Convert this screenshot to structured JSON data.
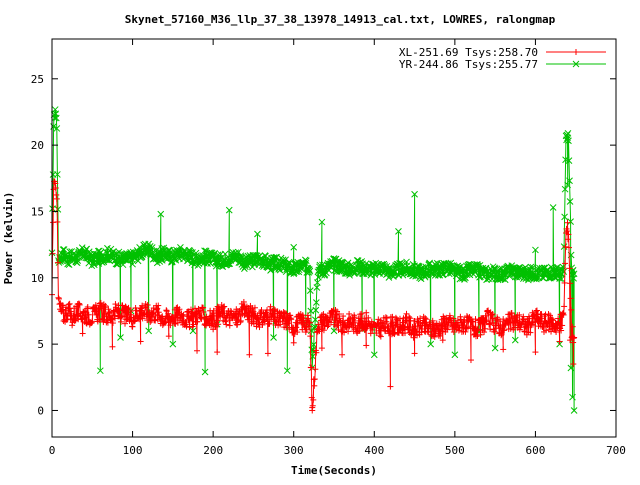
{
  "chart_data": {
    "type": "line",
    "title": "Skynet_57160_M36_llp_37_38_13978_14913_cal.txt, LOWRES, ralongmap",
    "xlabel": "Time(Seconds)",
    "ylabel": "Power (kelvin)",
    "xlim": [
      0,
      700
    ],
    "ylim": [
      -2,
      28
    ],
    "xticks": [
      0,
      100,
      200,
      300,
      400,
      500,
      600,
      700
    ],
    "yticks": [
      0,
      5,
      10,
      15,
      20,
      25
    ],
    "grid": false,
    "legend_position": "top-right",
    "series": [
      {
        "name": "XL-251.69 Tsys:258.70",
        "color": "#ff0000",
        "marker": "plus",
        "x": [
          0,
          2,
          4,
          6,
          8,
          10,
          15,
          20,
          25,
          30,
          40,
          50,
          60,
          70,
          80,
          90,
          100,
          110,
          120,
          130,
          140,
          150,
          160,
          170,
          180,
          190,
          200,
          210,
          220,
          230,
          240,
          250,
          260,
          270,
          280,
          290,
          300,
          310,
          320,
          323,
          330,
          340,
          350,
          360,
          370,
          380,
          390,
          400,
          410,
          420,
          430,
          440,
          450,
          460,
          470,
          480,
          490,
          500,
          510,
          520,
          530,
          540,
          550,
          560,
          570,
          580,
          590,
          600,
          610,
          620,
          630,
          635,
          638,
          641,
          645,
          648
        ],
        "y": [
          8.5,
          16.5,
          17.5,
          16.2,
          8.4,
          7.6,
          7.2,
          7.6,
          7.0,
          7.4,
          7.3,
          7.1,
          7.5,
          7.1,
          7.4,
          7.2,
          7.0,
          7.6,
          7.3,
          7.4,
          6.9,
          7.1,
          7.2,
          6.8,
          7.3,
          7.0,
          6.8,
          7.4,
          7.0,
          7.0,
          7.6,
          7.1,
          6.9,
          7.2,
          6.8,
          6.9,
          6.4,
          6.7,
          6.5,
          0.0,
          6.6,
          6.8,
          7.0,
          6.4,
          6.7,
          6.5,
          6.8,
          6.1,
          6.3,
          6.5,
          6.2,
          6.6,
          6.1,
          6.4,
          6.1,
          6.2,
          6.7,
          6.3,
          6.6,
          6.3,
          6.1,
          6.9,
          6.5,
          6.3,
          6.7,
          6.7,
          6.3,
          7.0,
          6.6,
          6.6,
          6.4,
          7.0,
          13.5,
          13.6,
          6.0,
          5.5
        ]
      },
      {
        "name": "YR-244.86 Tsys:255.77",
        "color": "#00c000",
        "marker": "cross",
        "x": [
          0,
          2,
          4,
          6,
          8,
          10,
          15,
          20,
          25,
          30,
          40,
          50,
          60,
          70,
          80,
          90,
          100,
          110,
          120,
          130,
          140,
          150,
          160,
          170,
          180,
          190,
          200,
          210,
          220,
          230,
          240,
          250,
          260,
          270,
          280,
          290,
          300,
          310,
          320,
          323,
          330,
          340,
          350,
          360,
          370,
          380,
          390,
          400,
          410,
          420,
          430,
          440,
          450,
          460,
          470,
          480,
          490,
          500,
          510,
          520,
          530,
          540,
          550,
          560,
          570,
          580,
          590,
          600,
          610,
          620,
          630,
          635,
          638,
          641,
          645,
          648
        ],
        "y": [
          11.5,
          21.5,
          22.8,
          21.5,
          11.4,
          11.6,
          11.8,
          11.4,
          11.6,
          11.5,
          11.9,
          11.3,
          11.6,
          11.8,
          11.5,
          11.4,
          11.5,
          11.9,
          12.2,
          11.6,
          11.8,
          11.6,
          11.9,
          11.7,
          11.4,
          11.6,
          11.4,
          11.3,
          11.5,
          11.7,
          11.1,
          11.3,
          11.4,
          11.0,
          11.1,
          10.9,
          10.6,
          10.9,
          10.8,
          3.5,
          10.5,
          10.7,
          11.0,
          10.9,
          10.6,
          10.9,
          10.7,
          10.6,
          10.8,
          10.4,
          10.6,
          10.7,
          10.5,
          10.4,
          10.7,
          10.6,
          10.8,
          10.5,
          10.3,
          10.6,
          10.5,
          10.3,
          10.4,
          10.2,
          10.6,
          10.4,
          10.3,
          10.4,
          10.3,
          10.5,
          10.3,
          10.4,
          20.5,
          20.6,
          10.5,
          10.3
        ]
      }
    ],
    "spikes": [
      {
        "series": 0,
        "x": [
          38,
          75,
          110,
          145,
          180,
          205,
          245,
          268,
          300,
          323,
          335,
          360,
          390,
          420,
          450,
          485,
          520,
          560,
          600,
          630,
          643,
          647
        ],
        "y": [
          5.8,
          4.8,
          5.2,
          5.6,
          4.5,
          4.4,
          4.2,
          4.3,
          5.1,
          0.0,
          4.7,
          4.2,
          4.9,
          1.8,
          4.3,
          5.3,
          3.8,
          4.6,
          4.4,
          5.2,
          5.3,
          3.5
        ]
      },
      {
        "series": 1,
        "x": [
          60,
          85,
          98,
          120,
          135,
          150,
          175,
          190,
          205,
          220,
          255,
          275,
          292,
          300,
          315,
          335,
          350,
          385,
          400,
          430,
          450,
          470,
          500,
          530,
          550,
          575,
          600,
          622,
          630,
          640,
          644,
          646,
          648
        ],
        "y": [
          3.0,
          5.5,
          7.5,
          6.0,
          14.8,
          5.0,
          6.0,
          2.9,
          6.5,
          15.1,
          13.3,
          5.5,
          3.0,
          12.3,
          6.6,
          14.2,
          6.0,
          6.1,
          4.2,
          13.5,
          16.3,
          5.0,
          4.2,
          5.9,
          4.7,
          5.3,
          12.1,
          15.3,
          5.0,
          17.0,
          3.2,
          1.0,
          0.0
        ]
      }
    ]
  }
}
